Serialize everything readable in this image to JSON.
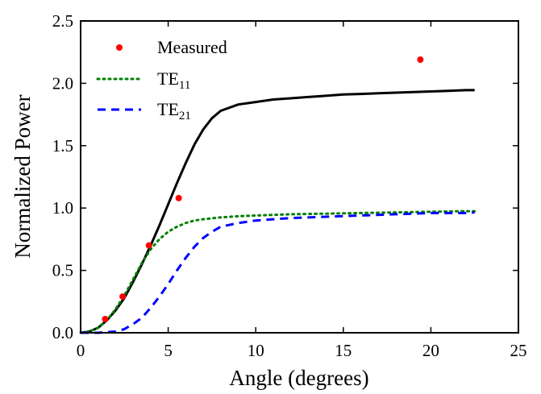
{
  "chart_data": {
    "type": "line",
    "title": "",
    "xlabel": "Angle (degrees)",
    "ylabel": "Normalized Power",
    "xlim": [
      0,
      25
    ],
    "ylim": [
      0,
      2.5
    ],
    "x_ticks": [
      0,
      5,
      10,
      15,
      20,
      25
    ],
    "y_ticks": [
      0.0,
      0.5,
      1.0,
      1.5,
      2.0,
      2.5
    ],
    "x_tick_labels": [
      "0",
      "5",
      "10",
      "15",
      "20",
      "25"
    ],
    "y_tick_labels": [
      "0.0",
      "0.5",
      "1.0",
      "1.5",
      "2.0",
      "2.5"
    ],
    "grid": false,
    "legend_position": "top-left",
    "series": [
      {
        "key": "total",
        "style": "solid",
        "color": "#000000",
        "x": [
          0,
          0.5,
          1,
          1.5,
          2,
          2.5,
          3,
          3.5,
          4,
          4.5,
          5,
          5.5,
          6,
          6.5,
          7,
          7.5,
          8,
          9,
          10,
          11,
          12,
          13,
          14,
          15,
          16,
          17,
          18,
          19,
          20,
          21,
          22,
          22.5
        ],
        "y": [
          0.0,
          0.01,
          0.04,
          0.1,
          0.18,
          0.28,
          0.41,
          0.55,
          0.7,
          0.86,
          1.03,
          1.2,
          1.36,
          1.51,
          1.63,
          1.72,
          1.78,
          1.83,
          1.85,
          1.87,
          1.88,
          1.89,
          1.9,
          1.91,
          1.915,
          1.92,
          1.925,
          1.93,
          1.935,
          1.94,
          1.945,
          1.945
        ]
      },
      {
        "key": "te11",
        "name": "TE",
        "name_sub": "11",
        "style": "dotted",
        "color": "#008000",
        "x": [
          0,
          0.5,
          1,
          1.5,
          2,
          2.5,
          3,
          3.5,
          4,
          4.5,
          5,
          5.5,
          6,
          6.5,
          7,
          8,
          9,
          10,
          11,
          12,
          14,
          16,
          18,
          20,
          22,
          22.5
        ],
        "y": [
          0.0,
          0.01,
          0.04,
          0.1,
          0.19,
          0.3,
          0.43,
          0.56,
          0.67,
          0.75,
          0.81,
          0.85,
          0.88,
          0.9,
          0.91,
          0.925,
          0.935,
          0.94,
          0.945,
          0.95,
          0.955,
          0.96,
          0.965,
          0.97,
          0.975,
          0.975
        ]
      },
      {
        "key": "te21",
        "name": "TE",
        "name_sub": "21",
        "style": "dashed",
        "color": "#0000ff",
        "x": [
          0,
          1,
          2,
          2.5,
          3,
          3.5,
          4,
          4.5,
          5,
          5.5,
          6,
          6.5,
          7,
          7.5,
          8,
          9,
          10,
          11,
          12,
          14,
          16,
          18,
          20,
          22,
          22.5
        ],
        "y": [
          0.0,
          0.0,
          0.01,
          0.03,
          0.07,
          0.12,
          0.2,
          0.29,
          0.39,
          0.5,
          0.6,
          0.69,
          0.76,
          0.81,
          0.85,
          0.88,
          0.9,
          0.91,
          0.92,
          0.93,
          0.94,
          0.95,
          0.96,
          0.96,
          0.965
        ]
      },
      {
        "key": "measured",
        "name": "Measured",
        "style": "markers",
        "color": "#ff0000",
        "x": [
          1.4,
          2.4,
          3.9,
          5.6,
          19.4
        ],
        "y": [
          0.11,
          0.29,
          0.7,
          1.08,
          2.19
        ]
      }
    ]
  }
}
